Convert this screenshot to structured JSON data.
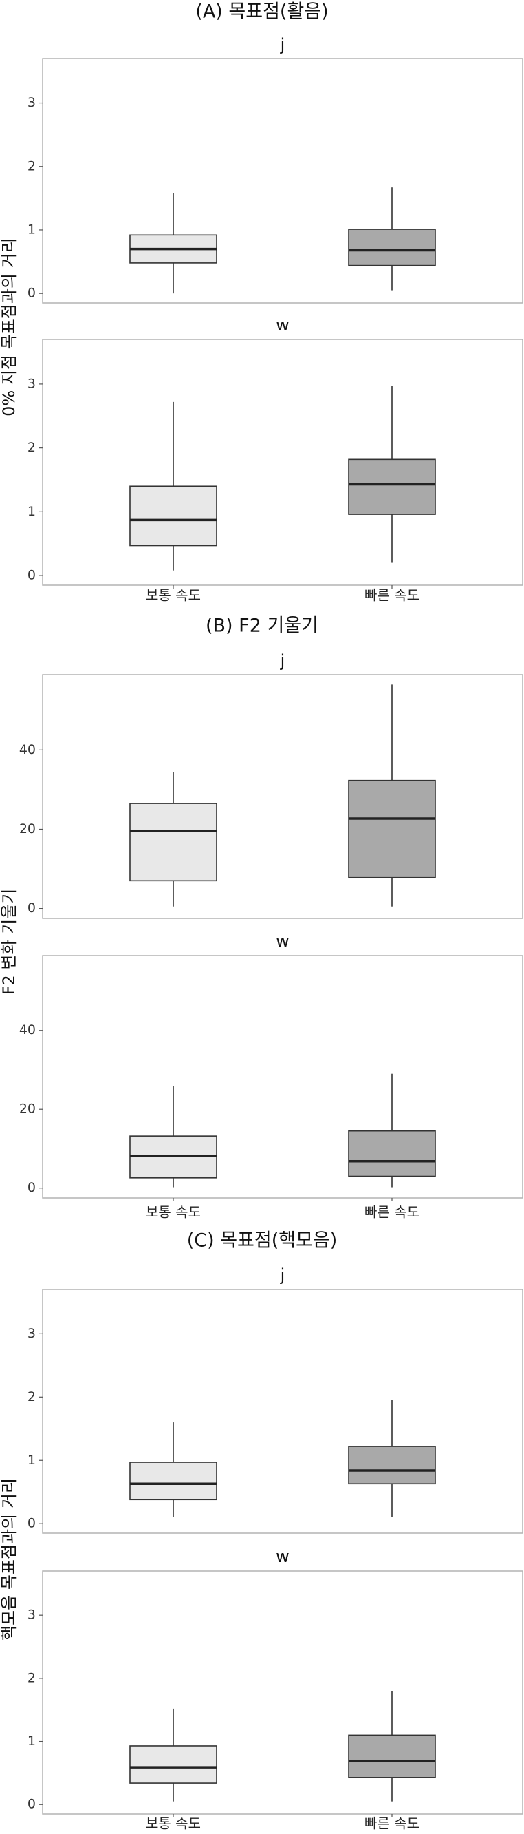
{
  "chart_data": [
    {
      "type": "boxplot",
      "title": "(A) 목표점(활음)",
      "ylabel": "0% 지점 목표점과의 거리",
      "categories": [
        "보통 속도",
        "빠른 속도"
      ],
      "category_colors": [
        "#e8e8e8",
        "#a9a9a9"
      ],
      "ylim": [
        -0.15,
        3.7
      ],
      "yticks": [
        0,
        1,
        2,
        3
      ],
      "panels": [
        {
          "facet": "j",
          "boxes": [
            {
              "category": "보통 속도",
              "min": 0.0,
              "q1": 0.48,
              "median": 0.7,
              "q3": 0.92,
              "max": 1.58
            },
            {
              "category": "빠른 속도",
              "min": 0.05,
              "q1": 0.44,
              "median": 0.68,
              "q3": 1.01,
              "max": 1.67
            }
          ]
        },
        {
          "facet": "w",
          "boxes": [
            {
              "category": "보통 속도",
              "min": 0.08,
              "q1": 0.47,
              "median": 0.87,
              "q3": 1.4,
              "max": 2.72
            },
            {
              "category": "빠른 속도",
              "min": 0.2,
              "q1": 0.96,
              "median": 1.43,
              "q3": 1.82,
              "max": 2.97
            }
          ]
        }
      ]
    },
    {
      "type": "boxplot",
      "title": "(B) F2 기울기",
      "ylabel": "F2 변화 기울기",
      "categories": [
        "보통 속도",
        "빠른 속도"
      ],
      "category_colors": [
        "#e8e8e8",
        "#a9a9a9"
      ],
      "ylim": [
        -2.5,
        59
      ],
      "yticks": [
        0,
        20,
        40
      ],
      "panels": [
        {
          "facet": "j",
          "boxes": [
            {
              "category": "보통 속도",
              "min": 0.5,
              "q1": 7.0,
              "median": 19.6,
              "q3": 26.5,
              "max": 34.5
            },
            {
              "category": "빠른 속도",
              "min": 0.5,
              "q1": 7.8,
              "median": 22.7,
              "q3": 32.3,
              "max": 56.5
            }
          ]
        },
        {
          "facet": "w",
          "boxes": [
            {
              "category": "보통 속도",
              "min": 0.2,
              "q1": 2.6,
              "median": 8.2,
              "q3": 13.2,
              "max": 25.9
            },
            {
              "category": "빠른 속도",
              "min": 0.2,
              "q1": 3.0,
              "median": 6.8,
              "q3": 14.5,
              "max": 29.0
            }
          ]
        }
      ]
    },
    {
      "type": "boxplot",
      "title": "(C) 목표점(핵모음)",
      "ylabel": "핵모음 목표점과의 거리",
      "categories": [
        "보통 속도",
        "빠른 속도"
      ],
      "category_colors": [
        "#e8e8e8",
        "#a9a9a9"
      ],
      "ylim": [
        -0.15,
        3.7
      ],
      "yticks": [
        0,
        1,
        2,
        3
      ],
      "panels": [
        {
          "facet": "j",
          "boxes": [
            {
              "category": "보통 속도",
              "min": 0.1,
              "q1": 0.38,
              "median": 0.63,
              "q3": 0.97,
              "max": 1.6
            },
            {
              "category": "빠른 속도",
              "min": 0.1,
              "q1": 0.63,
              "median": 0.84,
              "q3": 1.22,
              "max": 1.95
            }
          ]
        },
        {
          "facet": "w",
          "boxes": [
            {
              "category": "보통 속도",
              "min": 0.05,
              "q1": 0.34,
              "median": 0.59,
              "q3": 0.93,
              "max": 1.52
            },
            {
              "category": "빠른 속도",
              "min": 0.05,
              "q1": 0.43,
              "median": 0.69,
              "q3": 1.1,
              "max": 1.8
            }
          ]
        }
      ]
    }
  ]
}
